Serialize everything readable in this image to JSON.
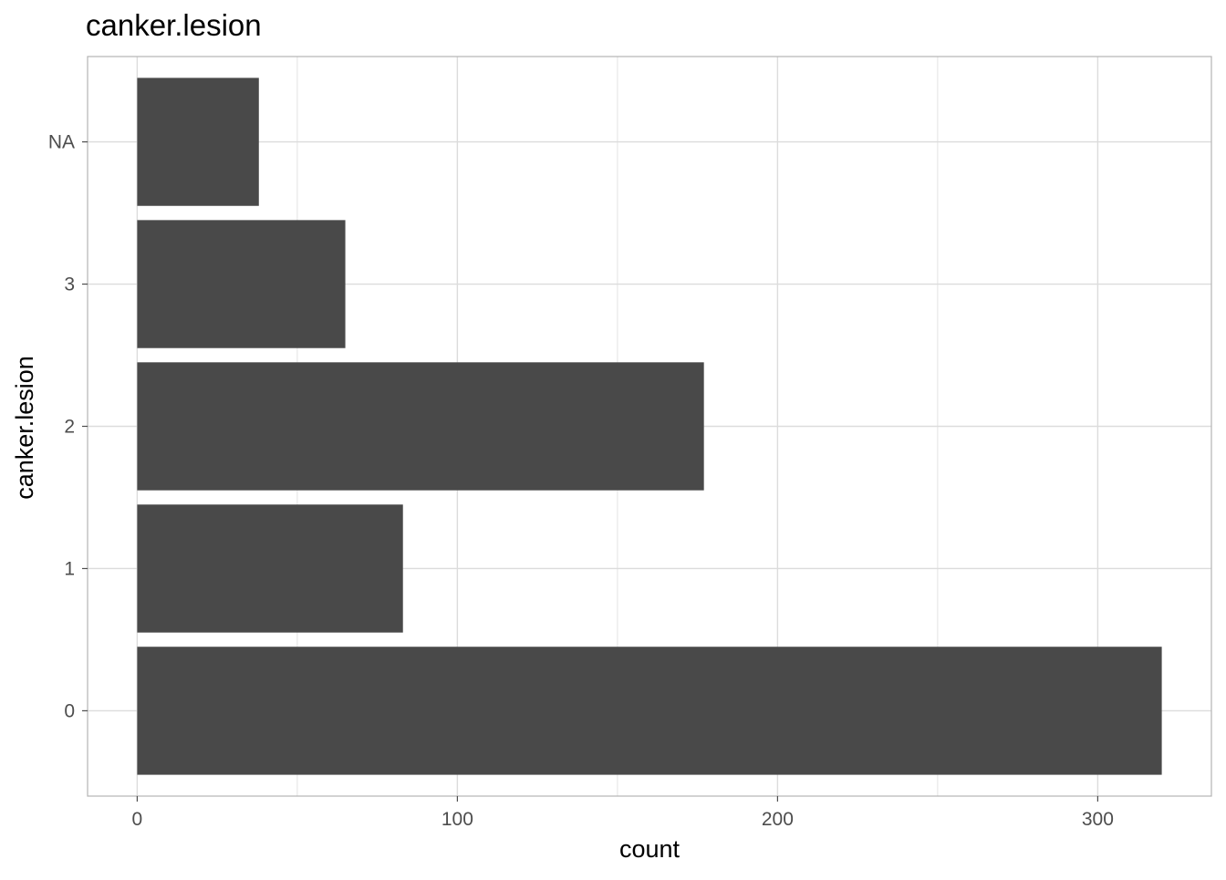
{
  "chart_data": {
    "type": "bar",
    "orientation": "horizontal",
    "title": "canker.lesion",
    "xlabel": "count",
    "ylabel": "canker.lesion",
    "categories": [
      "0",
      "1",
      "2",
      "3",
      "NA"
    ],
    "values": [
      320,
      83,
      177,
      65,
      38
    ],
    "xlim": [
      -15.5,
      335.5
    ],
    "x_ticks": [
      0,
      100,
      200,
      300
    ],
    "x_tick_labels": [
      "0",
      "100",
      "200",
      "300"
    ],
    "grid": true,
    "legend": "none",
    "colors": {
      "bar": "#494949",
      "grid": "#dcdcdc",
      "panel_border": "#b3b3b3",
      "tick": "#4d4d4d"
    }
  }
}
